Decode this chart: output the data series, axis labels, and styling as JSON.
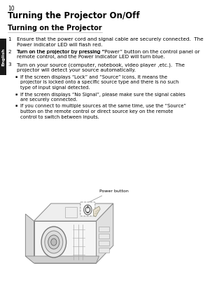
{
  "page_number": "10",
  "title": "Turning the Projector On/Off",
  "subtitle": "Turning on the Projector",
  "sidebar_text": "English",
  "sidebar_color": "#1a1a1a",
  "bg_color": "#ffffff",
  "text_color": "#000000",
  "gray_text": "#444444",
  "item1": "Ensure that the power cord and signal cable are securely connected.  The\nPower indicator LED will flash red.",
  "item2_pre": "Turn on the projector by pressing “",
  "item2_bold": "Power",
  "item2_post": "” button on the control panel or\nremote control, and the Power indicator LED will turn blue.",
  "item3": "Turn on your source (computer, notebook, video player ,etc.).  The\nprojector will detect your source automatically.",
  "bullet1_line1": "If the screen displays “Lock” and “Source” icons, it means the",
  "bullet1_line2": "projector is locked onto a specific source type and there is no such",
  "bullet1_line3": "type of input signal detected.",
  "bullet2_line1": "If the screen displays “No Signal”, please make sure the signal cables",
  "bullet2_line2": "are securely connected.",
  "bullet3_line1": "If you connect to multiple sources at the same time, use the “",
  "bullet3_bold": "Source",
  "bullet3_mid": "”",
  "bullet3_line2": "button on the remote control or direct source key on the remote",
  "bullet3_line3": "control to switch between inputs.",
  "power_button_label": "Power button",
  "title_fontsize": 8.5,
  "subtitle_fontsize": 7.0,
  "body_fontsize": 5.2,
  "page_num_fontsize": 5.5,
  "sidebar_fontsize": 4.5
}
